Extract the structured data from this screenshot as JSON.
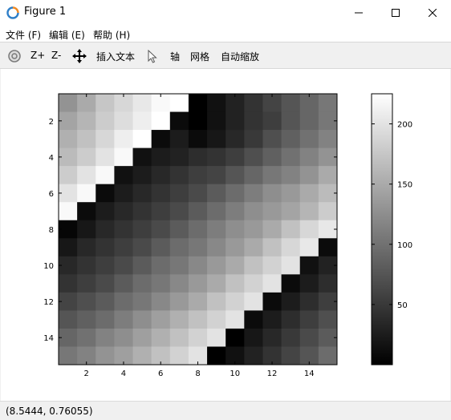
{
  "window": {
    "title": "Figure 1",
    "icon": "matlab-figure-icon"
  },
  "menu": {
    "items": [
      "文件 (F)",
      "编辑 (E)",
      "帮助 (H)"
    ]
  },
  "toolbar": {
    "zoom_in": "Z+",
    "zoom_out": "Z-",
    "insert_text": "插入文本",
    "axis": "轴",
    "grid": "网格",
    "autoscale": "自动缩放"
  },
  "status": {
    "coords": "(8.5444, 0.76055)"
  },
  "chart_data": {
    "type": "heatmap",
    "colormap": "gray",
    "rows": 15,
    "cols": 15,
    "x_ticks": [
      "2",
      "4",
      "6",
      "8",
      "10",
      "12",
      "14"
    ],
    "y_ticks": [
      "2",
      "4",
      "6",
      "8",
      "10",
      "12",
      "14"
    ],
    "colorbar_ticks": [
      "50",
      "100",
      "150",
      "200"
    ],
    "clim": [
      0,
      225
    ],
    "values": [
      [
        130,
        150,
        175,
        190,
        205,
        220,
        225,
        0,
        15,
        30,
        45,
        60,
        75,
        90,
        105
      ],
      [
        145,
        160,
        180,
        195,
        210,
        225,
        10,
        0,
        15,
        30,
        45,
        55,
        75,
        90,
        105
      ],
      [
        155,
        170,
        190,
        210,
        225,
        10,
        25,
        10,
        20,
        35,
        50,
        70,
        85,
        100,
        115
      ],
      [
        165,
        180,
        200,
        220,
        15,
        25,
        30,
        40,
        45,
        55,
        70,
        85,
        100,
        115,
        130
      ],
      [
        180,
        200,
        220,
        15,
        25,
        35,
        45,
        55,
        60,
        75,
        90,
        105,
        115,
        130,
        150
      ],
      [
        200,
        220,
        10,
        25,
        35,
        45,
        55,
        65,
        80,
        95,
        110,
        125,
        135,
        150,
        165
      ],
      [
        220,
        10,
        25,
        35,
        45,
        55,
        65,
        80,
        95,
        110,
        125,
        135,
        145,
        160,
        180
      ],
      [
        5,
        20,
        35,
        45,
        55,
        65,
        80,
        95,
        110,
        125,
        135,
        150,
        170,
        190,
        205
      ],
      [
        20,
        35,
        45,
        55,
        65,
        80,
        95,
        105,
        120,
        135,
        150,
        170,
        190,
        205,
        10
      ],
      [
        35,
        45,
        55,
        65,
        80,
        95,
        105,
        120,
        135,
        150,
        170,
        185,
        200,
        15,
        30
      ],
      [
        45,
        55,
        65,
        80,
        95,
        105,
        120,
        135,
        150,
        170,
        185,
        200,
        10,
        25,
        40
      ],
      [
        60,
        70,
        80,
        95,
        105,
        120,
        135,
        150,
        170,
        185,
        200,
        10,
        25,
        40,
        55
      ],
      [
        75,
        85,
        95,
        110,
        125,
        140,
        155,
        170,
        185,
        200,
        10,
        25,
        40,
        55,
        70
      ],
      [
        90,
        100,
        115,
        125,
        140,
        155,
        170,
        185,
        200,
        0,
        20,
        35,
        50,
        65,
        80
      ],
      [
        105,
        115,
        130,
        140,
        155,
        170,
        185,
        200,
        0,
        15,
        30,
        45,
        60,
        75,
        95
      ]
    ]
  }
}
